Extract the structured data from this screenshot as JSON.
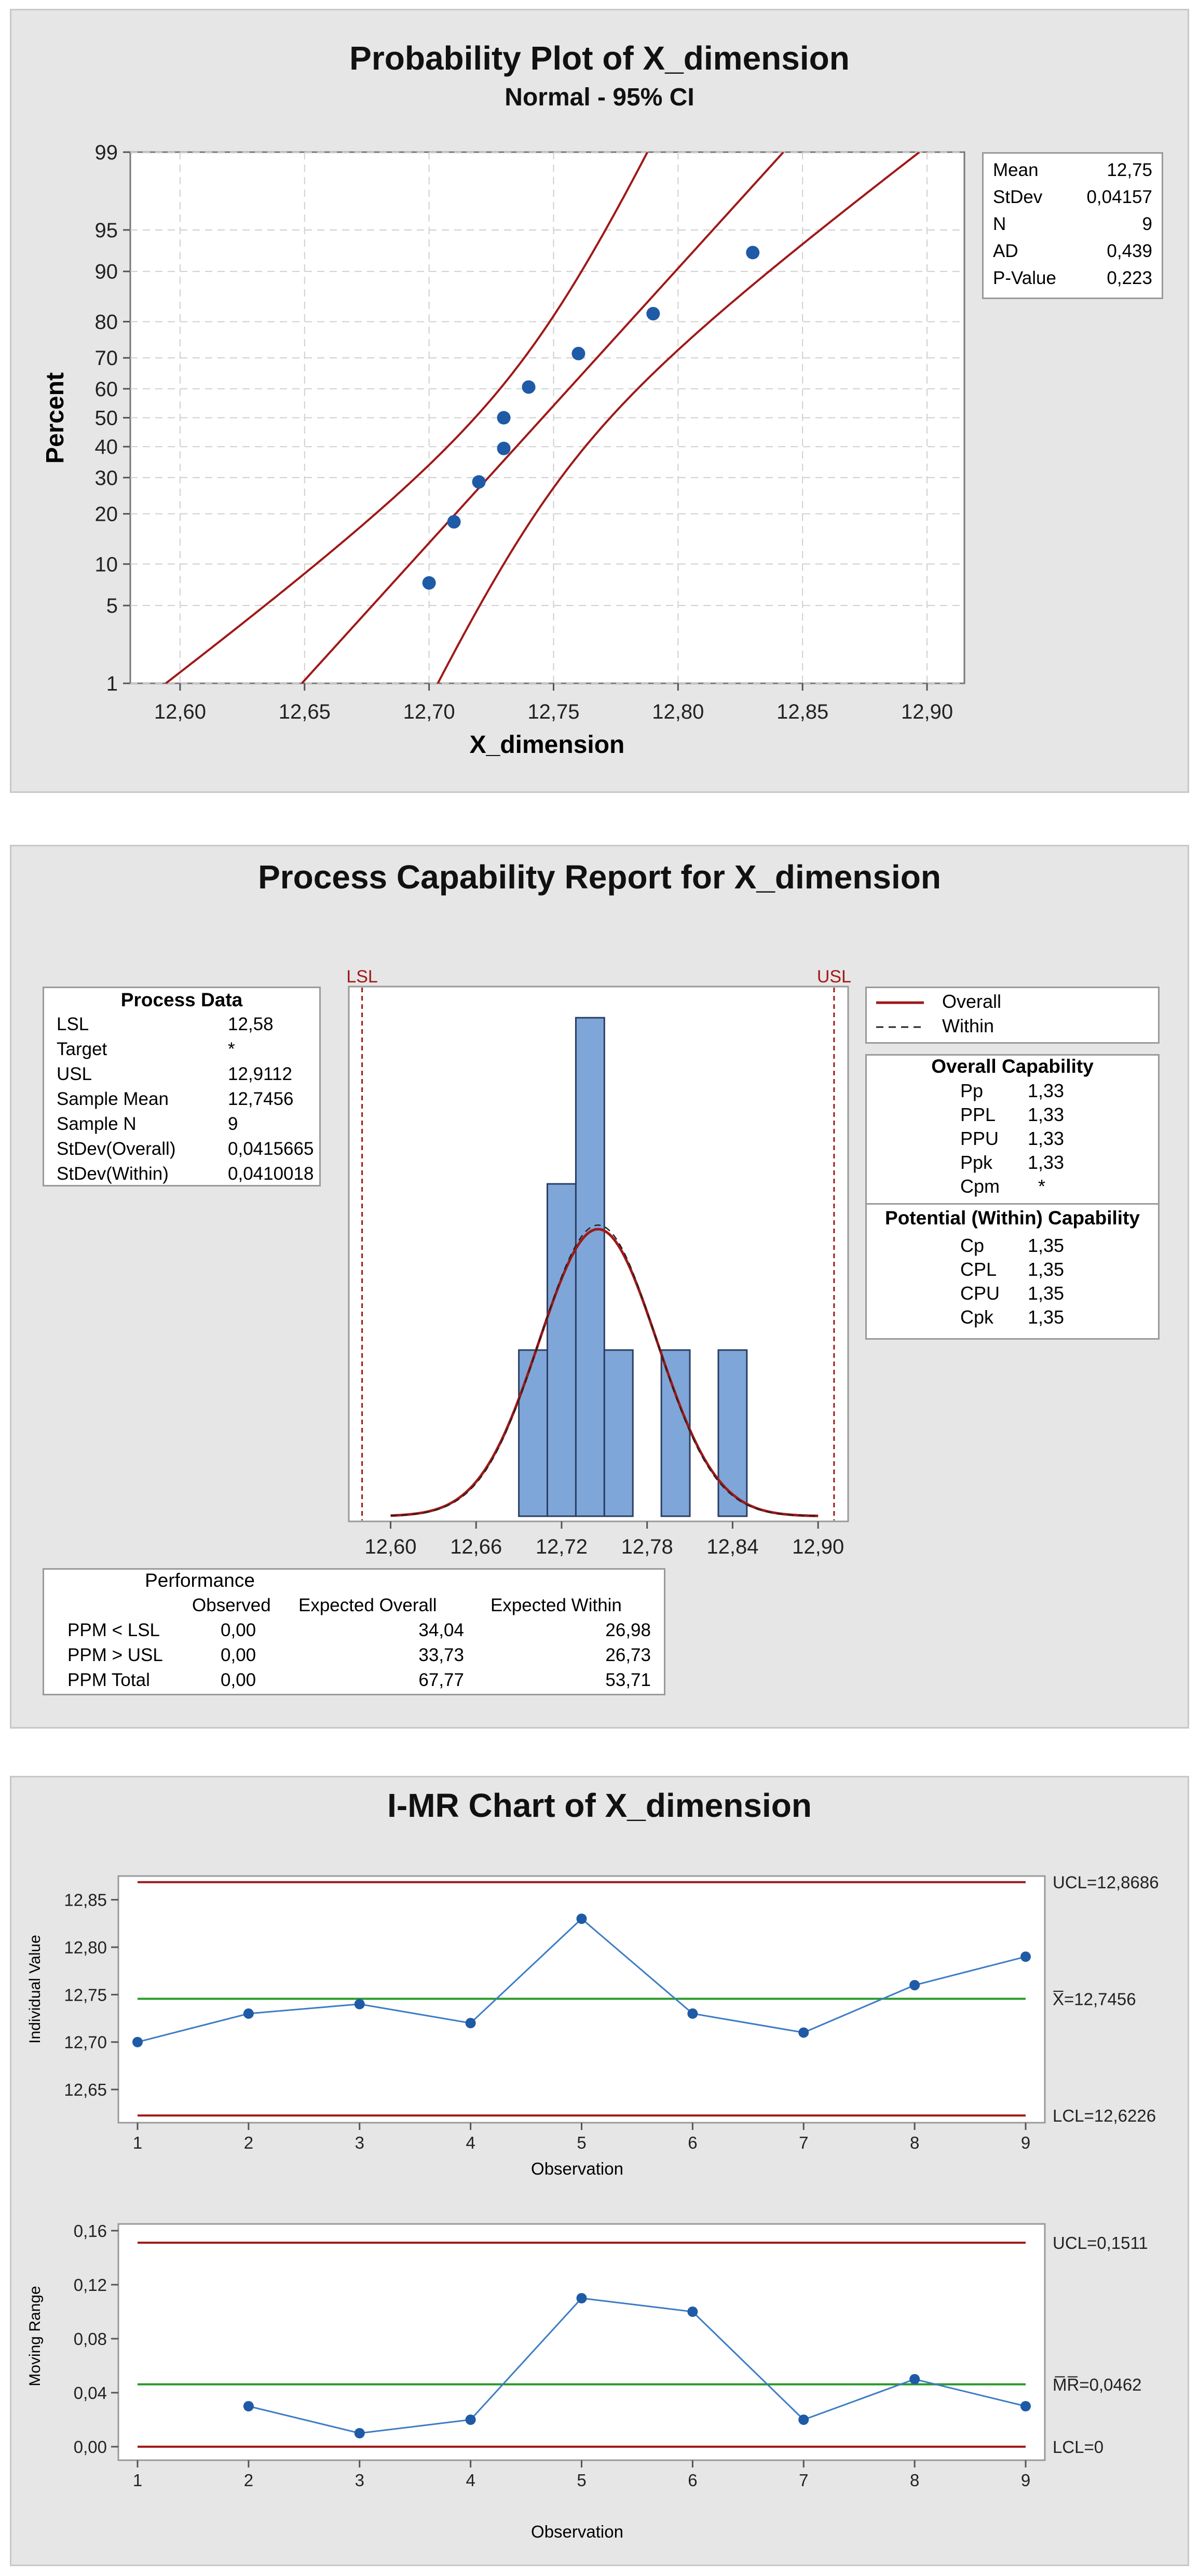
{
  "colors": {
    "ci_line": "#a01818",
    "point": "#1f5aa6",
    "bar_fill": "#7fa6d9",
    "bar_edge": "#2b3e63",
    "center_line": "#2a9a2a",
    "limit_line": "#a01818",
    "spec_line": "#a01818"
  },
  "chart_data": [
    {
      "type": "scatter",
      "title": "Probability Plot of X_dimension",
      "subtitle": "Normal - 95% CI",
      "xlabel": "X_dimension",
      "ylabel": "Percent",
      "xlim": [
        12.58,
        12.915
      ],
      "x_ticks": [
        "12,60",
        "12,65",
        "12,70",
        "12,75",
        "12,80",
        "12,85",
        "12,90"
      ],
      "y_ticks": [
        "1",
        "5",
        "10",
        "20",
        "30",
        "40",
        "50",
        "60",
        "70",
        "80",
        "90",
        "95",
        "99"
      ],
      "points": [
        {
          "x": 12.7,
          "p": 7.4
        },
        {
          "x": 12.71,
          "p": 18.1
        },
        {
          "x": 12.72,
          "p": 28.7
        },
        {
          "x": 12.73,
          "p": 39.4
        },
        {
          "x": 12.73,
          "p": 50.0
        },
        {
          "x": 12.74,
          "p": 60.6
        },
        {
          "x": 12.76,
          "p": 71.3
        },
        {
          "x": 12.79,
          "p": 81.9
        },
        {
          "x": 12.83,
          "p": 92.6
        }
      ],
      "fit": {
        "mean": 12.7456,
        "sd": 0.04157
      },
      "grid": true,
      "stats": [
        {
          "label": "Mean",
          "value": "12,75"
        },
        {
          "label": "StDev",
          "value": "0,04157"
        },
        {
          "label": "N",
          "value": "9"
        },
        {
          "label": "AD",
          "value": "0,439"
        },
        {
          "label": "P-Value",
          "value": "0,223"
        }
      ]
    },
    {
      "type": "bar",
      "title": "Process Capability Report for X_dimension",
      "x_ticks": [
        "12,60",
        "12,66",
        "12,72",
        "12,78",
        "12,84",
        "12,90"
      ],
      "xlim": [
        12.5816,
        12.9116
      ],
      "bins": [
        {
          "from": 12.69,
          "to": 12.71,
          "count": 1
        },
        {
          "from": 12.71,
          "to": 12.73,
          "count": 2
        },
        {
          "from": 12.73,
          "to": 12.75,
          "count": 3
        },
        {
          "from": 12.75,
          "to": 12.77,
          "count": 1
        },
        {
          "from": 12.79,
          "to": 12.81,
          "count": 1
        },
        {
          "from": 12.83,
          "to": 12.85,
          "count": 1
        }
      ],
      "ymax": 3,
      "spec": {
        "lsl": 12.58,
        "usl": 12.9112,
        "lsl_label": "LSL",
        "usl_label": "USL"
      },
      "curve": {
        "mean": 12.7456,
        "sd": 0.0415665
      },
      "legend": [
        {
          "label": "Overall",
          "style": "solid"
        },
        {
          "label": "Within",
          "style": "dashed"
        }
      ],
      "process_data": {
        "title": "Process Data",
        "rows": [
          {
            "label": "LSL",
            "value": "12,58"
          },
          {
            "label": "Target",
            "value": "*"
          },
          {
            "label": "USL",
            "value": "12,9112"
          },
          {
            "label": "Sample Mean",
            "value": "12,7456"
          },
          {
            "label": "Sample N",
            "value": "9"
          },
          {
            "label": "StDev(Overall)",
            "value": "0,0415665"
          },
          {
            "label": "StDev(Within)",
            "value": "0,0410018"
          }
        ]
      },
      "overall_capability": {
        "title": "Overall Capability",
        "rows": [
          {
            "label": "Pp",
            "value": "1,33"
          },
          {
            "label": "PPL",
            "value": "1,33"
          },
          {
            "label": "PPU",
            "value": "1,33"
          },
          {
            "label": "Ppk",
            "value": "1,33"
          },
          {
            "label": "Cpm",
            "value": "*"
          }
        ]
      },
      "within_capability": {
        "title": "Potential (Within) Capability",
        "rows": [
          {
            "label": "Cp",
            "value": "1,35"
          },
          {
            "label": "CPL",
            "value": "1,35"
          },
          {
            "label": "CPU",
            "value": "1,35"
          },
          {
            "label": "Cpk",
            "value": "1,35"
          }
        ]
      },
      "performance": {
        "title": "Performance",
        "headers": [
          "",
          "Observed",
          "Expected Overall",
          "Expected Within"
        ],
        "rows": [
          [
            "PPM < LSL",
            "0,00",
            "34,04",
            "26,98"
          ],
          [
            "PPM > USL",
            "0,00",
            "33,73",
            "26,73"
          ],
          [
            "PPM Total",
            "0,00",
            "67,77",
            "53,71"
          ]
        ]
      }
    },
    {
      "type": "line",
      "title": "I-MR Chart of X_dimension",
      "xlabel": "Observation",
      "ylabel": "Individual Value",
      "x": [
        1,
        2,
        3,
        4,
        5,
        6,
        7,
        8,
        9
      ],
      "values": [
        12.7,
        12.73,
        12.74,
        12.72,
        12.83,
        12.73,
        12.71,
        12.76,
        12.79
      ],
      "ylim": [
        12.615,
        12.875
      ],
      "y_ticks": [
        "12,65",
        "12,70",
        "12,75",
        "12,80",
        "12,85"
      ],
      "ucl": 12.8686,
      "center": 12.7456,
      "lcl": 12.6226,
      "ucl_label": "UCL=12,8686",
      "center_label": "X̅=12,7456",
      "lcl_label": "LCL=12,6226"
    },
    {
      "type": "line",
      "title": "",
      "xlabel": "Observation",
      "ylabel": "Moving Range",
      "x": [
        2,
        3,
        4,
        5,
        6,
        7,
        8,
        9
      ],
      "values": [
        0.03,
        0.01,
        0.02,
        0.11,
        0.1,
        0.02,
        0.05,
        0.03
      ],
      "ylim": [
        -0.01,
        0.165
      ],
      "y_ticks": [
        "0,00",
        "0,04",
        "0,08",
        "0,12",
        "0,16"
      ],
      "ucl": 0.1511,
      "center": 0.0462,
      "lcl": 0,
      "ucl_label": "UCL=0,1511",
      "center_label": "M̅R̅=0,0462",
      "lcl_label": "LCL=0"
    }
  ]
}
